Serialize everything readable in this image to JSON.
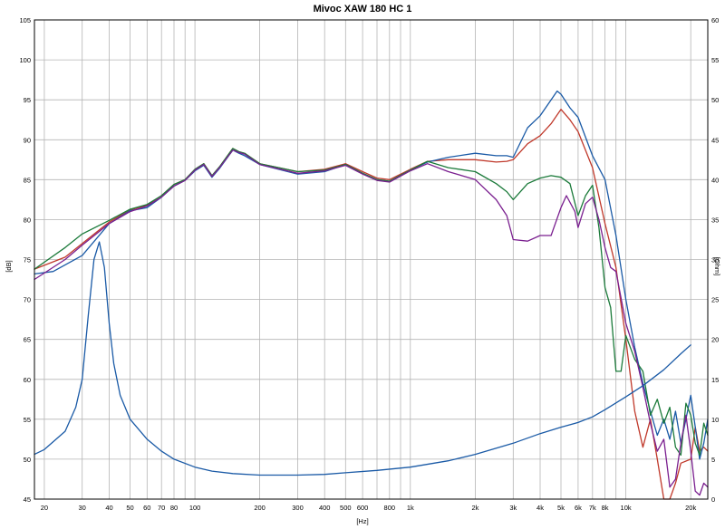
{
  "chart_data": {
    "type": "line",
    "title": "Mivoc XAW 180 HC 1",
    "xlabel": "[Hz]",
    "ylabel": "[dB]",
    "y2label": "[Ohm]",
    "x_scale": "log",
    "xlim": [
      18,
      24000
    ],
    "ylim": [
      45,
      105
    ],
    "grid": true,
    "x_ticks": [
      {
        "v": 20,
        "label": "20"
      },
      {
        "v": 30,
        "label": "30"
      },
      {
        "v": 40,
        "label": "40"
      },
      {
        "v": 50,
        "label": "50"
      },
      {
        "v": 60,
        "label": "60"
      },
      {
        "v": 70,
        "label": "70"
      },
      {
        "v": 80,
        "label": "80"
      },
      {
        "v": 100,
        "label": "100"
      },
      {
        "v": 200,
        "label": "200"
      },
      {
        "v": 300,
        "label": "300"
      },
      {
        "v": 400,
        "label": "400"
      },
      {
        "v": 500,
        "label": "500"
      },
      {
        "v": 600,
        "label": "600"
      },
      {
        "v": 800,
        "label": "800"
      },
      {
        "v": 1000,
        "label": "1k"
      },
      {
        "v": 2000,
        "label": "2k"
      },
      {
        "v": 3000,
        "label": "3k"
      },
      {
        "v": 4000,
        "label": "4k"
      },
      {
        "v": 5000,
        "label": "5k"
      },
      {
        "v": 6000,
        "label": "6k"
      },
      {
        "v": 7000,
        "label": "7k"
      },
      {
        "v": 8000,
        "label": "8k"
      },
      {
        "v": 10000,
        "label": "10k"
      },
      {
        "v": 20000,
        "label": "20k"
      }
    ],
    "x_grid": [
      20,
      30,
      40,
      50,
      60,
      70,
      80,
      90,
      100,
      200,
      300,
      400,
      500,
      600,
      700,
      800,
      900,
      1000,
      2000,
      3000,
      4000,
      5000,
      6000,
      7000,
      8000,
      9000,
      10000,
      20000
    ],
    "y_ticks": [
      45,
      50,
      55,
      60,
      65,
      70,
      75,
      80,
      85,
      90,
      95,
      100,
      105
    ],
    "y2_ticks": [
      {
        "v": 45,
        "label": "0"
      },
      {
        "v": 50,
        "label": "5"
      },
      {
        "v": 55,
        "label": "10"
      },
      {
        "v": 60,
        "label": "15"
      },
      {
        "v": 65,
        "label": "20"
      },
      {
        "v": 70,
        "label": "25"
      },
      {
        "v": 75,
        "label": "30"
      },
      {
        "v": 80,
        "label": "35"
      },
      {
        "v": 85,
        "label": "40"
      },
      {
        "v": 90,
        "label": "45"
      },
      {
        "v": 95,
        "label": "50"
      },
      {
        "v": 100,
        "label": "55"
      },
      {
        "v": 105,
        "label": "60"
      }
    ],
    "series": [
      {
        "color": "#c0392b",
        "points": [
          [
            18,
            73.8
          ],
          [
            25,
            75.3
          ],
          [
            30,
            77
          ],
          [
            40,
            79.7
          ],
          [
            50,
            81.2
          ],
          [
            60,
            81.8
          ],
          [
            70,
            83
          ],
          [
            80,
            84.4
          ],
          [
            90,
            85
          ],
          [
            100,
            86.3
          ],
          [
            110,
            87
          ],
          [
            120,
            85.5
          ],
          [
            130,
            86.6
          ],
          [
            150,
            88.9
          ],
          [
            160,
            88.5
          ],
          [
            170,
            88.3
          ],
          [
            200,
            87
          ],
          [
            300,
            86
          ],
          [
            400,
            86.3
          ],
          [
            500,
            87
          ],
          [
            600,
            86
          ],
          [
            700,
            85.2
          ],
          [
            800,
            85
          ],
          [
            1000,
            86.3
          ],
          [
            1200,
            87.3
          ],
          [
            1500,
            87.5
          ],
          [
            2000,
            87.5
          ],
          [
            2500,
            87.2
          ],
          [
            2800,
            87.3
          ],
          [
            3000,
            87.5
          ],
          [
            3500,
            89.5
          ],
          [
            4000,
            90.5
          ],
          [
            4500,
            92
          ],
          [
            5000,
            93.8
          ],
          [
            5500,
            92.5
          ],
          [
            6000,
            91
          ],
          [
            7000,
            86.5
          ],
          [
            8000,
            79.5
          ],
          [
            9000,
            74
          ],
          [
            10000,
            65
          ],
          [
            11000,
            56
          ],
          [
            12000,
            51.5
          ],
          [
            13000,
            55
          ],
          [
            14000,
            50
          ],
          [
            15000,
            45
          ],
          [
            16000,
            45
          ],
          [
            17000,
            47
          ],
          [
            18000,
            49.5
          ],
          [
            20000,
            50
          ],
          [
            21000,
            54
          ],
          [
            22000,
            51
          ],
          [
            23000,
            51.5
          ],
          [
            24000,
            51
          ]
        ]
      },
      {
        "color": "#1a5aa6",
        "points": [
          [
            18,
            73.2
          ],
          [
            22,
            73.5
          ],
          [
            30,
            75.5
          ],
          [
            40,
            79.5
          ],
          [
            50,
            81.1
          ],
          [
            60,
            81.5
          ],
          [
            70,
            82.8
          ],
          [
            80,
            84.2
          ],
          [
            90,
            84.9
          ],
          [
            100,
            86.1
          ],
          [
            110,
            86.8
          ],
          [
            120,
            85.3
          ],
          [
            130,
            86.4
          ],
          [
            150,
            88.7
          ],
          [
            160,
            88.3
          ],
          [
            170,
            88
          ],
          [
            200,
            86.9
          ],
          [
            300,
            85.7
          ],
          [
            400,
            86
          ],
          [
            500,
            86.9
          ],
          [
            600,
            85.8
          ],
          [
            700,
            85
          ],
          [
            800,
            84.8
          ],
          [
            1000,
            86.2
          ],
          [
            1200,
            87.2
          ],
          [
            1500,
            87.8
          ],
          [
            2000,
            88.3
          ],
          [
            2500,
            88
          ],
          [
            2800,
            88
          ],
          [
            3000,
            87.8
          ],
          [
            3500,
            91.5
          ],
          [
            4000,
            93
          ],
          [
            4500,
            95
          ],
          [
            4800,
            96.1
          ],
          [
            5000,
            95.7
          ],
          [
            5500,
            94
          ],
          [
            6000,
            92.8
          ],
          [
            7000,
            88
          ],
          [
            8000,
            85
          ],
          [
            9000,
            78
          ],
          [
            10000,
            70
          ],
          [
            11000,
            64
          ],
          [
            12000,
            59.5
          ],
          [
            13000,
            56
          ],
          [
            14000,
            53
          ],
          [
            15000,
            55
          ],
          [
            16000,
            52.5
          ],
          [
            17000,
            56
          ],
          [
            18000,
            52
          ],
          [
            19000,
            55
          ],
          [
            20000,
            58
          ],
          [
            21000,
            54
          ],
          [
            22000,
            50
          ],
          [
            23000,
            52
          ],
          [
            24000,
            55
          ]
        ]
      },
      {
        "color": "#1b7a3a",
        "points": [
          [
            18,
            73.8
          ],
          [
            25,
            76.5
          ],
          [
            30,
            78.2
          ],
          [
            40,
            79.9
          ],
          [
            50,
            81.3
          ],
          [
            60,
            81.9
          ],
          [
            70,
            83
          ],
          [
            80,
            84.4
          ],
          [
            90,
            85
          ],
          [
            100,
            86.3
          ],
          [
            110,
            87
          ],
          [
            120,
            85.5
          ],
          [
            130,
            86.6
          ],
          [
            150,
            88.9
          ],
          [
            160,
            88.5
          ],
          [
            170,
            88.3
          ],
          [
            200,
            87
          ],
          [
            300,
            86
          ],
          [
            400,
            86.2
          ],
          [
            500,
            86.9
          ],
          [
            600,
            85.8
          ],
          [
            700,
            85
          ],
          [
            800,
            84.8
          ],
          [
            1000,
            86.2
          ],
          [
            1200,
            87.3
          ],
          [
            1500,
            86.5
          ],
          [
            2000,
            86
          ],
          [
            2500,
            84.5
          ],
          [
            2800,
            83.5
          ],
          [
            3000,
            82.5
          ],
          [
            3500,
            84.5
          ],
          [
            4000,
            85.2
          ],
          [
            4500,
            85.5
          ],
          [
            5000,
            85.3
          ],
          [
            5500,
            84.5
          ],
          [
            6000,
            80.5
          ],
          [
            6500,
            83
          ],
          [
            7000,
            84.3
          ],
          [
            7500,
            79
          ],
          [
            8000,
            71.5
          ],
          [
            8500,
            69
          ],
          [
            9000,
            61
          ],
          [
            9500,
            61
          ],
          [
            10000,
            65.5
          ],
          [
            11000,
            62.5
          ],
          [
            12000,
            61
          ],
          [
            13000,
            55.5
          ],
          [
            14000,
            57.5
          ],
          [
            15000,
            54.5
          ],
          [
            16000,
            56.5
          ],
          [
            17000,
            51.5
          ],
          [
            18000,
            50.5
          ],
          [
            19000,
            57
          ],
          [
            20000,
            55.5
          ],
          [
            21000,
            52
          ],
          [
            22000,
            50.5
          ],
          [
            23000,
            54.5
          ],
          [
            24000,
            53
          ]
        ]
      },
      {
        "color": "#7a1f8f",
        "points": [
          [
            18,
            72.5
          ],
          [
            25,
            75
          ],
          [
            30,
            76.8
          ],
          [
            40,
            79.5
          ],
          [
            50,
            81
          ],
          [
            60,
            81.7
          ],
          [
            70,
            82.8
          ],
          [
            80,
            84.2
          ],
          [
            90,
            84.9
          ],
          [
            100,
            86.2
          ],
          [
            110,
            86.9
          ],
          [
            120,
            85.4
          ],
          [
            130,
            86.5
          ],
          [
            150,
            88.7
          ],
          [
            160,
            88.4
          ],
          [
            170,
            88.2
          ],
          [
            200,
            86.9
          ],
          [
            300,
            85.8
          ],
          [
            400,
            86.1
          ],
          [
            500,
            86.8
          ],
          [
            600,
            85.7
          ],
          [
            700,
            84.9
          ],
          [
            800,
            84.7
          ],
          [
            1000,
            86.1
          ],
          [
            1200,
            87
          ],
          [
            1500,
            86
          ],
          [
            2000,
            85
          ],
          [
            2500,
            82.5
          ],
          [
            2800,
            80.5
          ],
          [
            3000,
            77.5
          ],
          [
            3500,
            77.3
          ],
          [
            4000,
            78
          ],
          [
            4500,
            78
          ],
          [
            5000,
            81.5
          ],
          [
            5300,
            83
          ],
          [
            5800,
            81
          ],
          [
            6000,
            79
          ],
          [
            6500,
            82
          ],
          [
            7000,
            82.8
          ],
          [
            7500,
            80
          ],
          [
            8000,
            76.5
          ],
          [
            8500,
            74
          ],
          [
            9000,
            73.5
          ],
          [
            10000,
            67
          ],
          [
            11000,
            63.5
          ],
          [
            12000,
            59
          ],
          [
            13000,
            54.5
          ],
          [
            14000,
            51
          ],
          [
            15000,
            52.5
          ],
          [
            16000,
            46.5
          ],
          [
            17000,
            47.5
          ],
          [
            18000,
            52
          ],
          [
            19000,
            55.5
          ],
          [
            20000,
            51
          ],
          [
            21000,
            46
          ],
          [
            22000,
            45.5
          ],
          [
            23000,
            47
          ],
          [
            24000,
            46.5
          ]
        ]
      },
      {
        "color": "#1a5aa6",
        "points": [
          [
            18,
            50.6
          ],
          [
            20,
            51.2
          ],
          [
            25,
            53.5
          ],
          [
            28,
            56.5
          ],
          [
            30,
            60
          ],
          [
            32,
            68
          ],
          [
            34,
            75
          ],
          [
            36,
            77.2
          ],
          [
            38,
            74
          ],
          [
            40,
            67
          ],
          [
            42,
            62
          ],
          [
            45,
            58
          ],
          [
            50,
            55
          ],
          [
            60,
            52.5
          ],
          [
            70,
            51
          ],
          [
            80,
            50
          ],
          [
            100,
            49
          ],
          [
            120,
            48.5
          ],
          [
            150,
            48.2
          ],
          [
            200,
            48
          ],
          [
            300,
            48
          ],
          [
            400,
            48.1
          ],
          [
            500,
            48.3
          ],
          [
            700,
            48.6
          ],
          [
            1000,
            49
          ],
          [
            1500,
            49.8
          ],
          [
            2000,
            50.6
          ],
          [
            3000,
            52
          ],
          [
            4000,
            53.2
          ],
          [
            5000,
            54
          ],
          [
            6000,
            54.6
          ],
          [
            7000,
            55.3
          ],
          [
            8000,
            56.2
          ],
          [
            10000,
            57.8
          ],
          [
            12000,
            59.2
          ],
          [
            15000,
            61.2
          ],
          [
            18000,
            63.2
          ],
          [
            20000,
            64.3
          ]
        ]
      }
    ]
  }
}
